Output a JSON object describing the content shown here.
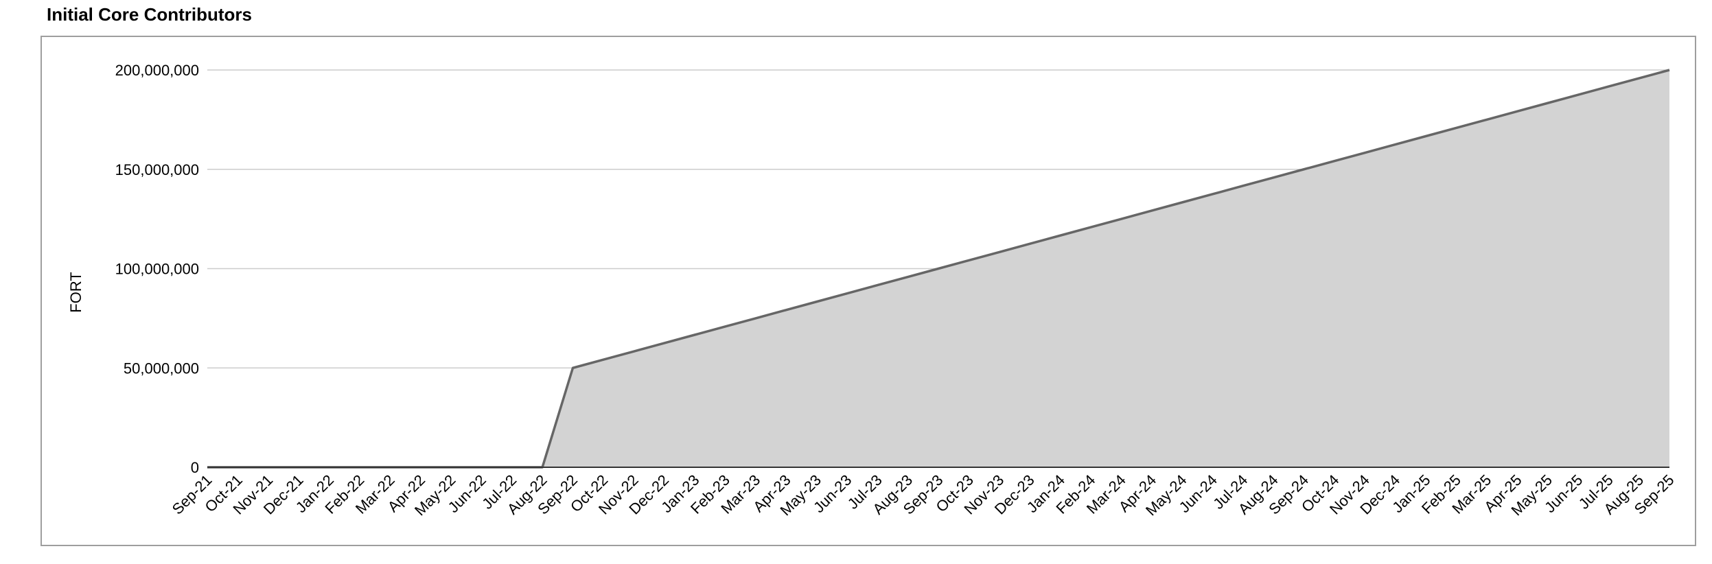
{
  "chart_data": {
    "type": "area",
    "title": "Initial Core Contributors",
    "xlabel": "",
    "ylabel": "FORT",
    "ylim": [
      0,
      200000000
    ],
    "yticks": [
      0,
      50000000,
      100000000,
      150000000,
      200000000
    ],
    "ytick_labels": [
      "0",
      "50,000,000",
      "100,000,000",
      "150,000,000",
      "200,000,000"
    ],
    "grid": true,
    "legend": "none",
    "categories": [
      "Sep-21",
      "Oct-21",
      "Nov-21",
      "Dec-21",
      "Jan-22",
      "Feb-22",
      "Mar-22",
      "Apr-22",
      "May-22",
      "Jun-22",
      "Jul-22",
      "Aug-22",
      "Sep-22",
      "Oct-22",
      "Nov-22",
      "Dec-22",
      "Jan-23",
      "Feb-23",
      "Mar-23",
      "Apr-23",
      "May-23",
      "Jun-23",
      "Jul-23",
      "Aug-23",
      "Sep-23",
      "Oct-23",
      "Nov-23",
      "Dec-23",
      "Jan-24",
      "Feb-24",
      "Mar-24",
      "Apr-24",
      "May-24",
      "Jun-24",
      "Jul-24",
      "Aug-24",
      "Sep-24",
      "Oct-24",
      "Nov-24",
      "Dec-24",
      "Jan-25",
      "Feb-25",
      "Mar-25",
      "Apr-25",
      "May-25",
      "Jun-25",
      "Jul-25",
      "Aug-25",
      "Sep-25"
    ],
    "series": [
      {
        "values": [
          0,
          0,
          0,
          0,
          0,
          0,
          0,
          0,
          0,
          0,
          0,
          0,
          50000000,
          54166667,
          58333333,
          62500000,
          66666667,
          70833333,
          75000000,
          79166667,
          83333333,
          87500000,
          91666667,
          95833333,
          100000000,
          104166667,
          108333333,
          112500000,
          116666667,
          120833333,
          125000000,
          129166667,
          133333333,
          137500000,
          141666667,
          145833333,
          150000000,
          154166667,
          158333333,
          162500000,
          166666667,
          170833333,
          175000000,
          179166667,
          183333333,
          187500000,
          191666667,
          195833333,
          200000000
        ]
      }
    ],
    "colors": {
      "fill": "#d3d3d3",
      "line": "#666666",
      "grid": "#cccccc",
      "axis": "#333333",
      "frame": "#9e9e9e"
    }
  }
}
